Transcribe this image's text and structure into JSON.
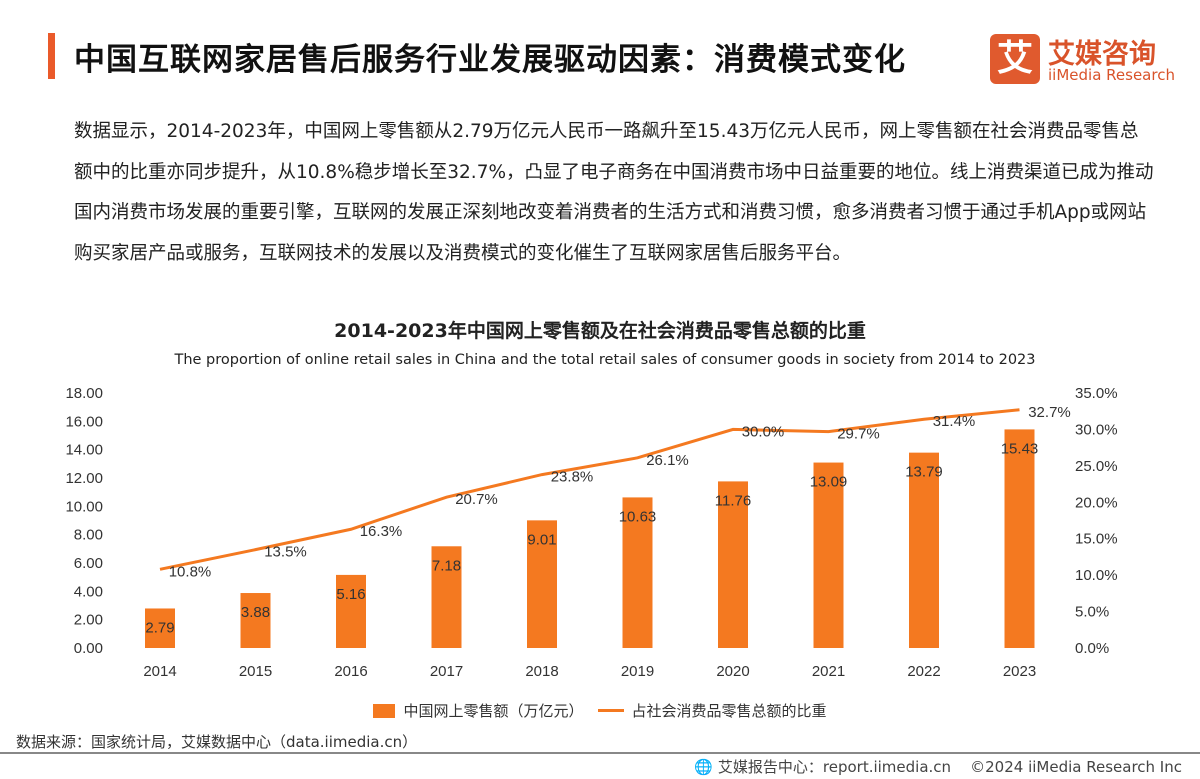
{
  "header": {
    "title": "中国互联网家居售后服务行业发展驱动因素：消费模式变化",
    "logo_cn": "艾媒咨询",
    "logo_en": "iiMedia Research",
    "logo_mark": "艾"
  },
  "paragraph": "数据显示，2014-2023年，中国网上零售额从2.79万亿元人民币一路飙升至15.43万亿元人民币，网上零售额在社会消费品零售总额中的比重亦同步提升，从10.8%稳步增长至32.7%，凸显了电子商务在中国消费市场中日益重要的地位。线上消费渠道已成为推动国内消费市场发展的重要引擎，互联网的发展正深刻地改变着消费者的生活方式和消费习惯，愈多消费者习惯于通过手机App或网站购买家居产品或服务，互联网技术的发展以及消费模式的变化催生了互联网家居售后服务平台。",
  "chart_data": {
    "type": "bar+line",
    "title": "2014-2023年中国网上零售额及在社会消费品零售总额的比重",
    "subtitle": "The proportion of online retail sales in China and the total retail sales of consumer goods in society from 2014 to 2023",
    "categories": [
      "2014",
      "2015",
      "2016",
      "2017",
      "2018",
      "2019",
      "2020",
      "2021",
      "2022",
      "2023"
    ],
    "series": [
      {
        "name": "中国网上零售额（万亿元）",
        "type": "bar",
        "axis": "left",
        "values": [
          2.79,
          3.88,
          5.16,
          7.18,
          9.01,
          10.63,
          11.76,
          13.09,
          13.79,
          15.43
        ],
        "labels": [
          "2.79",
          "3.88",
          "5.16",
          "7.18",
          "9.01",
          "10.63",
          "11.76",
          "13.09",
          "13.79",
          "15.43"
        ]
      },
      {
        "name": "占社会消费品零售总额的比重",
        "type": "line",
        "axis": "right",
        "values": [
          10.8,
          13.5,
          16.3,
          20.7,
          23.8,
          26.1,
          30.0,
          29.7,
          31.4,
          32.7
        ],
        "labels": [
          "10.8%",
          "13.5%",
          "16.3%",
          "20.7%",
          "23.8%",
          "26.1%",
          "30.0%",
          "29.7%",
          "31.4%",
          "32.7%"
        ]
      }
    ],
    "y_left": {
      "range": [
        0,
        18
      ],
      "ticks": [
        "0.00",
        "2.00",
        "4.00",
        "6.00",
        "8.00",
        "10.00",
        "12.00",
        "14.00",
        "16.00",
        "18.00"
      ]
    },
    "y_right": {
      "range": [
        0,
        35
      ],
      "ticks": [
        "0.0%",
        "5.0%",
        "10.0%",
        "15.0%",
        "20.0%",
        "25.0%",
        "30.0%",
        "35.0%"
      ]
    },
    "grid": false,
    "legend_position": "bottom",
    "colors": {
      "bar": "#f47920",
      "line": "#f47920"
    }
  },
  "source": "数据来源：国家统计局，艾媒数据中心（data.iimedia.cn）",
  "footer": {
    "report": "艾媒报告中心：report.iimedia.cn",
    "copyright": "©2024  iiMedia Research  Inc"
  }
}
